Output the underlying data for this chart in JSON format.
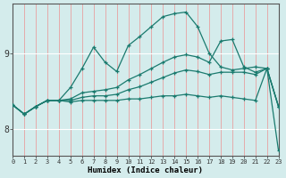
{
  "xlabel": "Humidex (Indice chaleur)",
  "background_color": "#d4ecec",
  "grid_color": "#ffffff",
  "line_color": "#1a7a6e",
  "x_ticks": [
    0,
    1,
    2,
    3,
    4,
    5,
    6,
    7,
    8,
    9,
    10,
    11,
    12,
    13,
    14,
    15,
    16,
    17,
    18,
    19,
    20,
    21,
    22,
    23
  ],
  "y_ticks": [
    8,
    9
  ],
  "ylim": [
    7.65,
    9.65
  ],
  "xlim": [
    0,
    23
  ],
  "lines": [
    [
      8.32,
      8.2,
      8.3,
      8.38,
      8.38,
      8.55,
      8.8,
      9.08,
      8.88,
      8.76,
      9.1,
      9.22,
      9.35,
      9.48,
      9.52,
      9.54,
      9.35,
      9.0,
      8.82,
      8.78,
      8.8,
      8.82,
      8.8,
      8.3
    ],
    [
      8.32,
      8.2,
      8.3,
      8.38,
      8.38,
      8.4,
      8.48,
      8.5,
      8.52,
      8.55,
      8.65,
      8.72,
      8.8,
      8.88,
      8.95,
      8.98,
      8.95,
      8.88,
      9.16,
      9.18,
      8.82,
      8.75,
      8.8,
      8.3
    ],
    [
      8.32,
      8.2,
      8.3,
      8.38,
      8.38,
      8.38,
      8.42,
      8.44,
      8.44,
      8.46,
      8.52,
      8.56,
      8.62,
      8.68,
      8.74,
      8.78,
      8.76,
      8.72,
      8.75,
      8.75,
      8.75,
      8.72,
      8.8,
      8.3
    ],
    [
      8.32,
      8.2,
      8.3,
      8.38,
      8.38,
      8.36,
      8.38,
      8.38,
      8.38,
      8.38,
      8.4,
      8.4,
      8.42,
      8.44,
      8.44,
      8.46,
      8.44,
      8.42,
      8.44,
      8.42,
      8.4,
      8.38,
      8.8,
      7.72
    ]
  ]
}
